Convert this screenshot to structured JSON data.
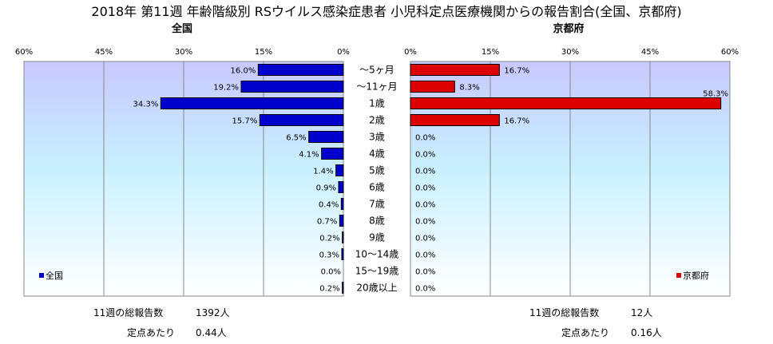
{
  "chart_data": {
    "type": "bar",
    "title": "2018年 第11週 年齢階級別 RSウイルス感染症患者 小児科定点医療機関からの報告割合(全国、京都府)",
    "categories": [
      "～5ヶ月",
      "～11ヶ月",
      "1歳",
      "2歳",
      "3歳",
      "4歳",
      "5歳",
      "6歳",
      "7歳",
      "8歳",
      "9歳",
      "10～14歳",
      "15～19歳",
      "20歳以上"
    ],
    "xlim": [
      0,
      60
    ],
    "xticks": [
      "60%",
      "45%",
      "30%",
      "15%",
      "0%"
    ],
    "xticks_right": [
      "0%",
      "15%",
      "30%",
      "45%",
      "60%"
    ],
    "grid": true,
    "panels": [
      {
        "name": "全国",
        "subtitle": "全国",
        "color": "#0000cc",
        "values": [
          16.0,
          19.2,
          34.3,
          15.7,
          6.5,
          4.1,
          1.4,
          0.9,
          0.4,
          0.7,
          0.2,
          0.3,
          0.0,
          0.2
        ],
        "labels": [
          "16.0%",
          "19.2%",
          "34.3%",
          "15.7%",
          "6.5%",
          "4.1%",
          "1.4%",
          "0.9%",
          "0.4%",
          "0.7%",
          "0.2%",
          "0.3%",
          "0.0%",
          "0.2%"
        ],
        "legend": "全国",
        "legend_position": "bottom-left"
      },
      {
        "name": "京都府",
        "subtitle": "京都府",
        "color": "#dd0000",
        "values": [
          16.7,
          8.3,
          58.3,
          16.7,
          0,
          0,
          0,
          0,
          0,
          0,
          0,
          0,
          0,
          0
        ],
        "labels": [
          "16.7%",
          "8.3%",
          "58.3%",
          "16.7%",
          "0.0%",
          "0.0%",
          "0.0%",
          "0.0%",
          "0.0%",
          "0.0%",
          "0.0%",
          "0.0%",
          "0.0%",
          "0.0%"
        ],
        "legend": "京都府",
        "legend_position": "bottom-right"
      }
    ]
  },
  "footer": {
    "national": {
      "total_label": "11週の総報告数",
      "total_value": "1392人",
      "per_label": "定点あたり",
      "per_value": "0.44人"
    },
    "kyoto": {
      "total_label": "11週の総報告数",
      "total_value": "12人",
      "per_label": "定点あたり",
      "per_value": "0.16人"
    }
  }
}
